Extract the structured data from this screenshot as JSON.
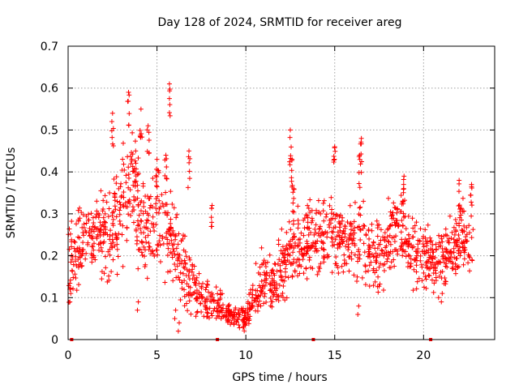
{
  "chart_data": {
    "type": "scatter",
    "title": "Day 128 of 2024, SRMTID for receiver areg",
    "xlabel": "GPS time / hours",
    "ylabel": "SRMTID / TECUs",
    "xlim": [
      0,
      24
    ],
    "ylim": [
      0,
      0.7
    ],
    "x_ticks": [
      0,
      5,
      10,
      15,
      20
    ],
    "x_tick_labels": [
      "0",
      "5",
      "10",
      "15",
      "20"
    ],
    "y_ticks": [
      0,
      0.1,
      0.2,
      0.3,
      0.4,
      0.5,
      0.6,
      0.7
    ],
    "y_tick_labels": [
      "0",
      "0.1",
      "0.2",
      "0.3",
      "0.4",
      "0.5",
      "0.6",
      "0.7"
    ],
    "grid": true,
    "series_color": "#ff0000",
    "marker": "plus",
    "envelope": {
      "x": [
        0.0,
        0.5,
        1.0,
        1.5,
        2.0,
        2.5,
        3.0,
        3.5,
        4.0,
        4.5,
        5.0,
        5.5,
        6.0,
        6.5,
        7.0,
        7.5,
        8.0,
        8.5,
        9.0,
        9.5,
        10.0,
        10.5,
        11.0,
        11.5,
        12.0,
        12.5,
        13.0,
        13.5,
        14.0,
        14.5,
        15.0,
        15.5,
        16.0,
        16.5,
        17.0,
        17.5,
        18.0,
        18.5,
        19.0,
        19.5,
        20.0,
        20.5,
        21.0,
        21.5,
        22.0,
        22.5,
        22.8
      ],
      "mean": [
        0.18,
        0.22,
        0.24,
        0.25,
        0.25,
        0.26,
        0.32,
        0.36,
        0.3,
        0.25,
        0.28,
        0.27,
        0.2,
        0.17,
        0.13,
        0.1,
        0.08,
        0.08,
        0.06,
        0.05,
        0.05,
        0.1,
        0.15,
        0.12,
        0.17,
        0.22,
        0.22,
        0.24,
        0.23,
        0.24,
        0.26,
        0.24,
        0.23,
        0.24,
        0.2,
        0.2,
        0.24,
        0.27,
        0.26,
        0.22,
        0.2,
        0.19,
        0.19,
        0.21,
        0.23,
        0.24,
        0.23
      ],
      "spread": [
        0.08,
        0.07,
        0.06,
        0.06,
        0.07,
        0.08,
        0.1,
        0.1,
        0.09,
        0.09,
        0.08,
        0.08,
        0.07,
        0.06,
        0.05,
        0.04,
        0.03,
        0.03,
        0.02,
        0.015,
        0.02,
        0.04,
        0.05,
        0.04,
        0.05,
        0.06,
        0.06,
        0.06,
        0.06,
        0.06,
        0.07,
        0.06,
        0.06,
        0.06,
        0.06,
        0.06,
        0.06,
        0.06,
        0.06,
        0.06,
        0.05,
        0.05,
        0.06,
        0.06,
        0.06,
        0.06,
        0.06
      ]
    },
    "peaks": [
      {
        "x": 2.5,
        "y": 0.54
      },
      {
        "x": 3.4,
        "y": 0.59
      },
      {
        "x": 3.8,
        "y": 0.45
      },
      {
        "x": 4.1,
        "y": 0.55
      },
      {
        "x": 4.5,
        "y": 0.51
      },
      {
        "x": 5.0,
        "y": 0.43
      },
      {
        "x": 5.7,
        "y": 0.61
      },
      {
        "x": 5.5,
        "y": 0.44
      },
      {
        "x": 6.8,
        "y": 0.45
      },
      {
        "x": 8.1,
        "y": 0.32
      },
      {
        "x": 12.5,
        "y": 0.5
      },
      {
        "x": 12.6,
        "y": 0.43
      },
      {
        "x": 12.7,
        "y": 0.36
      },
      {
        "x": 15.0,
        "y": 0.46
      },
      {
        "x": 16.5,
        "y": 0.48
      },
      {
        "x": 16.4,
        "y": 0.44
      },
      {
        "x": 18.9,
        "y": 0.39
      },
      {
        "x": 22.0,
        "y": 0.38
      },
      {
        "x": 22.7,
        "y": 0.37
      }
    ],
    "lows": [
      {
        "x": 6.0,
        "y": 0.05
      },
      {
        "x": 6.2,
        "y": 0.02
      },
      {
        "x": 0.1,
        "y": 0.09
      },
      {
        "x": 3.9,
        "y": 0.07
      },
      {
        "x": 16.3,
        "y": 0.06
      },
      {
        "x": 21.0,
        "y": 0.09
      }
    ],
    "gap_markers_x": [
      0.2,
      8.4,
      13.8,
      20.4
    ]
  }
}
